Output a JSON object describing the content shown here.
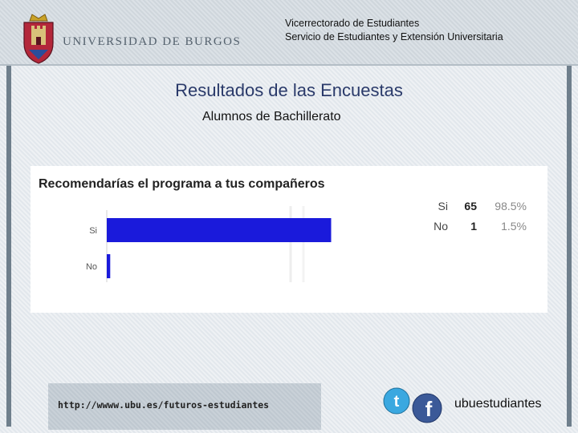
{
  "header": {
    "university_name": "UNIVERSIDAD DE BURGOS",
    "line1": "Vicerrectorado de Estudiantes",
    "line2": "Servicio de Estudiantes y Extensión Universitaria"
  },
  "slide": {
    "title": "Resultados de las Encuestas",
    "subtitle": "Alumnos de Bachillerato"
  },
  "chart_data": {
    "type": "bar",
    "orientation": "horizontal",
    "title": "Recomendarías el programa a tus compañeros",
    "categories": [
      "Si",
      "No"
    ],
    "values": [
      65,
      1
    ],
    "percentages": [
      "98.5%",
      "1.5%"
    ],
    "xlim": [
      0,
      100
    ],
    "bar_color": "#1a1adb",
    "grid": false
  },
  "footer": {
    "url": "http://wwww.ubu.es/futuros-estudiantes",
    "handle": "ubuestudiantes"
  },
  "colors": {
    "twitter": "#3aa8e0",
    "facebook": "#3b5998",
    "title": "#2a3a6a"
  }
}
